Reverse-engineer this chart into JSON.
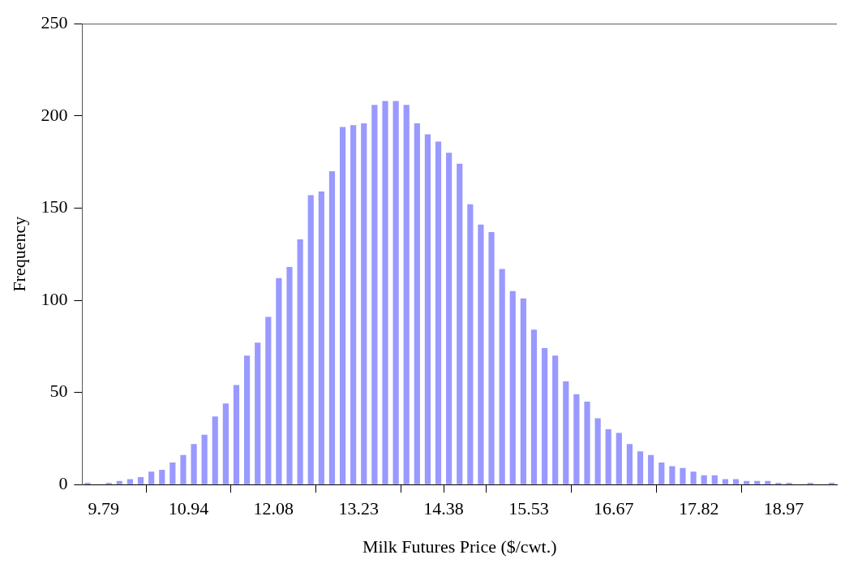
{
  "chart_data": {
    "type": "histogram",
    "xlabel": "Milk Futures Price ($/cwt.)",
    "ylabel": "Frequency",
    "bins": [
      9.503,
      9.647,
      9.79,
      9.933,
      10.077,
      10.22,
      10.364,
      10.508,
      10.651,
      10.794,
      10.938,
      11.081,
      11.224,
      11.368,
      11.511,
      11.655,
      11.798,
      11.942,
      12.085,
      12.228,
      12.372,
      12.515,
      12.659,
      12.802,
      12.946,
      13.089,
      13.232,
      13.376,
      13.519,
      13.663,
      13.806,
      13.95,
      14.093,
      14.236,
      14.38,
      14.523,
      14.667,
      14.81,
      14.953,
      15.097,
      15.24,
      15.384,
      15.527,
      15.671,
      15.814,
      15.957,
      16.101,
      16.244,
      16.388,
      16.531,
      16.674,
      16.818,
      16.961,
      17.105,
      17.248,
      17.392,
      17.535,
      17.678,
      17.822,
      17.965,
      18.109,
      18.252,
      18.395,
      18.539,
      18.682,
      18.826,
      18.969,
      19.113,
      19.256,
      19.399,
      19.543,
      19.686
    ],
    "values": [
      1,
      0,
      1,
      2,
      3,
      4,
      7,
      8,
      12,
      16,
      22,
      27,
      37,
      44,
      54,
      70,
      77,
      91,
      112,
      118,
      133,
      157,
      159,
      170,
      194,
      195,
      196,
      206,
      208,
      208,
      206,
      196,
      190,
      186,
      180,
      174,
      152,
      141,
      137,
      117,
      105,
      101,
      84,
      74,
      70,
      56,
      49,
      45,
      36,
      30,
      28,
      22,
      18,
      16,
      12,
      10,
      9,
      7,
      5,
      5,
      3,
      3,
      2,
      2,
      2,
      1,
      1,
      0,
      1,
      0,
      1
    ],
    "color": "#9999ff",
    "xlim": [
      9.503,
      19.686
    ],
    "xticks": [
      {
        "value": 10.938,
        "label": "10.94"
      },
      {
        "value": 12.085,
        "label": "12.08"
      },
      {
        "value": 13.232,
        "label": "13.23"
      },
      {
        "value": 14.38,
        "label": "14.38"
      },
      {
        "value": 15.527,
        "label": "15.53"
      },
      {
        "value": 16.674,
        "label": "16.67"
      },
      {
        "value": 17.822,
        "label": "17.82"
      },
      {
        "value": 18.969,
        "label": "18.97"
      },
      {
        "value": 9.79,
        "label": "9.79"
      }
    ],
    "ylim": [
      0,
      250
    ],
    "yticks": [
      0,
      50,
      100,
      150,
      200,
      250
    ],
    "grid": false
  }
}
